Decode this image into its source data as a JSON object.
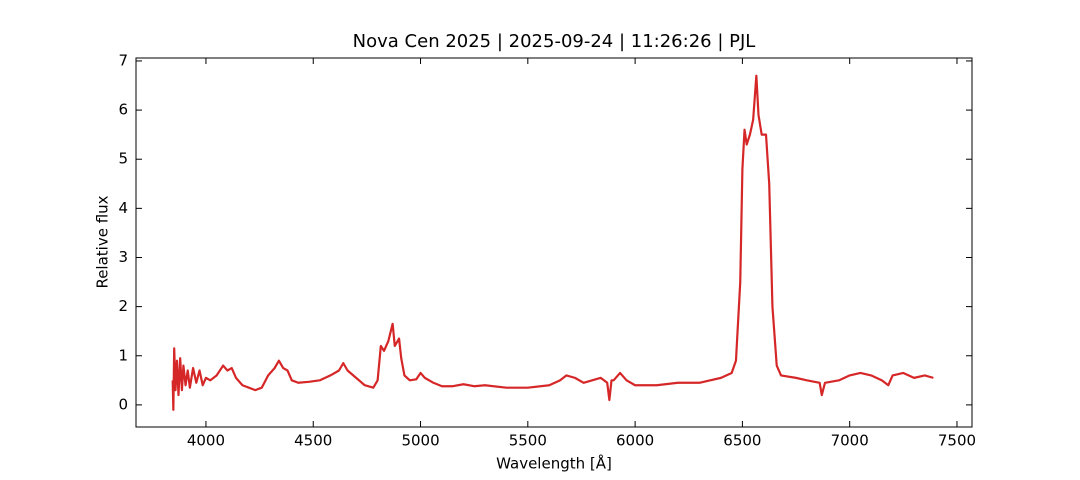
{
  "chart_data": {
    "type": "line",
    "title": "Nova Cen 2025 | 2025-09-24 | 11:26:26 | PJL",
    "xlabel": "Wavelength [Å]",
    "ylabel": "Relative flux",
    "xlim": [
      3674,
      7570
    ],
    "ylim": [
      -0.45,
      7.06
    ],
    "xticks": [
      4000,
      4500,
      5000,
      5500,
      6000,
      6500,
      7000,
      7500
    ],
    "yticks": [
      0,
      1,
      2,
      3,
      4,
      5,
      6,
      7
    ],
    "series": [
      {
        "color": "#d62728",
        "x": [
          3845,
          3848,
          3852,
          3858,
          3865,
          3872,
          3880,
          3888,
          3895,
          3905,
          3915,
          3925,
          3940,
          3955,
          3970,
          3985,
          4000,
          4020,
          4050,
          4080,
          4100,
          4120,
          4140,
          4170,
          4200,
          4230,
          4260,
          4290,
          4320,
          4340,
          4360,
          4380,
          4400,
          4430,
          4480,
          4530,
          4580,
          4620,
          4640,
          4660,
          4700,
          4740,
          4780,
          4800,
          4815,
          4830,
          4850,
          4870,
          4880,
          4900,
          4910,
          4925,
          4950,
          4980,
          5000,
          5020,
          5060,
          5100,
          5150,
          5200,
          5250,
          5300,
          5400,
          5500,
          5600,
          5650,
          5680,
          5720,
          5760,
          5800,
          5840,
          5870,
          5880,
          5890,
          5900,
          5930,
          5960,
          6000,
          6100,
          6200,
          6300,
          6400,
          6450,
          6470,
          6490,
          6500,
          6510,
          6520,
          6535,
          6550,
          6565,
          6575,
          6590,
          6610,
          6625,
          6640,
          6660,
          6680,
          6750,
          6800,
          6860,
          6870,
          6885,
          6950,
          7000,
          7050,
          7100,
          7150,
          7180,
          7200,
          7250,
          7300,
          7350,
          7390
        ],
        "values": [
          0.5,
          -0.1,
          1.15,
          0.3,
          0.9,
          0.2,
          0.95,
          0.3,
          0.8,
          0.4,
          0.7,
          0.35,
          0.75,
          0.45,
          0.7,
          0.4,
          0.55,
          0.5,
          0.6,
          0.8,
          0.7,
          0.75,
          0.55,
          0.4,
          0.35,
          0.3,
          0.35,
          0.6,
          0.75,
          0.9,
          0.75,
          0.7,
          0.5,
          0.45,
          0.47,
          0.5,
          0.6,
          0.7,
          0.85,
          0.7,
          0.55,
          0.4,
          0.35,
          0.5,
          1.2,
          1.1,
          1.3,
          1.65,
          1.2,
          1.35,
          0.95,
          0.6,
          0.5,
          0.52,
          0.65,
          0.55,
          0.45,
          0.38,
          0.38,
          0.42,
          0.38,
          0.4,
          0.35,
          0.35,
          0.4,
          0.5,
          0.6,
          0.55,
          0.45,
          0.5,
          0.55,
          0.45,
          0.1,
          0.5,
          0.5,
          0.65,
          0.5,
          0.4,
          0.4,
          0.45,
          0.45,
          0.55,
          0.65,
          0.9,
          2.5,
          4.8,
          5.6,
          5.3,
          5.5,
          5.8,
          6.7,
          5.9,
          5.5,
          5.5,
          4.5,
          2.0,
          0.8,
          0.6,
          0.55,
          0.5,
          0.45,
          0.2,
          0.45,
          0.5,
          0.6,
          0.65,
          0.6,
          0.5,
          0.4,
          0.6,
          0.65,
          0.55,
          0.6,
          0.55
        ]
      }
    ]
  }
}
